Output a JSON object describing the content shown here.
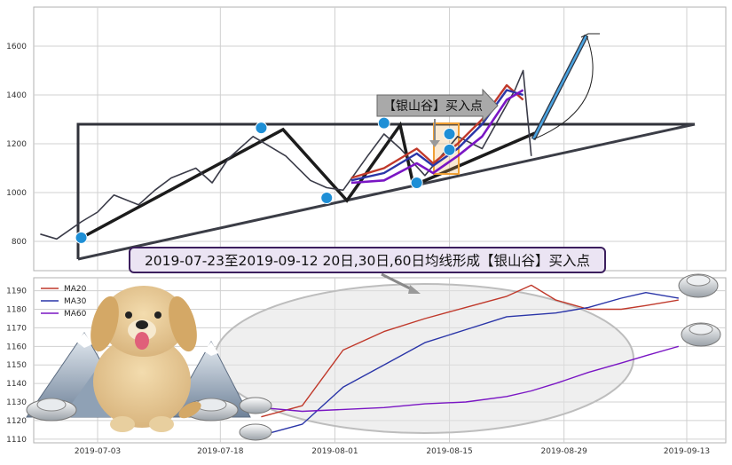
{
  "chart_data": [
    {
      "type": "line",
      "title": "",
      "xlabel": "",
      "ylabel": "",
      "ylim": [
        680,
        1760
      ],
      "y_ticks": [
        800,
        1000,
        1200,
        1400,
        1600
      ],
      "grid": true,
      "series": [
        {
          "x": [
            "2019-06-26",
            "2019-06-28",
            "2019-07-01",
            "2019-07-03",
            "2019-07-05",
            "2019-07-08",
            "2019-07-10",
            "2019-07-12",
            "2019-07-15",
            "2019-07-17",
            "2019-07-19",
            "2019-07-22",
            "2019-07-24",
            "2019-07-26",
            "2019-07-29",
            "2019-07-31",
            "2019-08-02",
            "2019-08-05",
            "2019-08-07",
            "2019-08-09",
            "2019-08-12",
            "2019-08-14",
            "2019-08-16",
            "2019-08-19",
            "2019-08-21",
            "2019-08-23",
            "2019-08-24",
            "2019-08-25"
          ],
          "values": [
            830,
            810,
            880,
            920,
            990,
            950,
            1010,
            1060,
            1100,
            1040,
            1140,
            1230,
            1190,
            1150,
            1050,
            1020,
            1010,
            1150,
            1240,
            1180,
            1070,
            1150,
            1230,
            1180,
            1300,
            1420,
            1500,
            1150
          ]
        },
        {
          "name": "MA20",
          "x": [
            "2019-08-03",
            "2019-08-07",
            "2019-08-11",
            "2019-08-13",
            "2019-08-16",
            "2019-08-19",
            "2019-08-22",
            "2019-08-24"
          ],
          "values": [
            1060,
            1100,
            1180,
            1120,
            1200,
            1300,
            1440,
            1380
          ]
        },
        {
          "name": "MA30",
          "x": [
            "2019-08-03",
            "2019-08-07",
            "2019-08-11",
            "2019-08-13",
            "2019-08-16",
            "2019-08-19",
            "2019-08-22",
            "2019-08-24"
          ],
          "values": [
            1050,
            1080,
            1160,
            1110,
            1180,
            1280,
            1420,
            1400
          ]
        },
        {
          "name": "MA60",
          "x": [
            "2019-08-03",
            "2019-08-07",
            "2019-08-11",
            "2019-08-13",
            "2019-08-16",
            "2019-08-19",
            "2019-08-22",
            "2019-08-24"
          ],
          "values": [
            1040,
            1050,
            1120,
            1080,
            1150,
            1230,
            1380,
            1420
          ]
        }
      ],
      "markers": [
        {
          "x": "2019-07-01",
          "value": 815
        },
        {
          "x": "2019-07-23",
          "value": 1265
        },
        {
          "x": "2019-07-31",
          "value": 978
        },
        {
          "x": "2019-08-07",
          "value": 1285
        },
        {
          "x": "2019-08-11",
          "value": 1040
        },
        {
          "x": "2019-08-15",
          "value": 1240
        },
        {
          "x": "2019-08-15",
          "value": 1175
        }
      ],
      "annotations": {
        "buy_point": "【银山谷】买入点",
        "caption": "2019-07-23至2019-09-12 20日,30日,60日均线形成【银山谷】买入点"
      }
    },
    {
      "type": "line",
      "title": "",
      "xlabel": "",
      "ylabel": "",
      "ylim": [
        1108,
        1197
      ],
      "y_ticks": [
        1110,
        1120,
        1130,
        1140,
        1150,
        1160,
        1170,
        1180,
        1190
      ],
      "x_ticks": [
        "2019-07-03",
        "2019-07-18",
        "2019-08-01",
        "2019-08-15",
        "2019-08-29",
        "2019-09-13"
      ],
      "legend": "top-left",
      "grid": true,
      "series": [
        {
          "name": "MA20",
          "color": "#c0392b",
          "x": [
            "2019-07-23",
            "2019-07-28",
            "2019-08-02",
            "2019-08-07",
            "2019-08-12",
            "2019-08-17",
            "2019-08-22",
            "2019-08-25",
            "2019-08-28",
            "2019-09-01",
            "2019-09-05",
            "2019-09-08",
            "2019-09-12"
          ],
          "values": [
            1122,
            1128,
            1158,
            1168,
            1175,
            1181,
            1187,
            1193,
            1185,
            1180,
            1180,
            1182,
            1185
          ]
        },
        {
          "name": "MA30",
          "color": "#2a35a8",
          "x": [
            "2019-07-23",
            "2019-07-28",
            "2019-08-02",
            "2019-08-07",
            "2019-08-12",
            "2019-08-17",
            "2019-08-22",
            "2019-08-25",
            "2019-08-28",
            "2019-09-01",
            "2019-09-05",
            "2019-09-08",
            "2019-09-12"
          ],
          "values": [
            1112,
            1118,
            1138,
            1150,
            1162,
            1169,
            1176,
            1177,
            1178,
            1181,
            1186,
            1189,
            1186
          ]
        },
        {
          "name": "MA60",
          "color": "#7a16c4",
          "x": [
            "2019-07-23",
            "2019-07-28",
            "2019-08-02",
            "2019-08-07",
            "2019-08-12",
            "2019-08-17",
            "2019-08-22",
            "2019-08-25",
            "2019-08-28",
            "2019-09-01",
            "2019-09-05",
            "2019-09-08",
            "2019-09-12"
          ],
          "values": [
            1127,
            1125,
            1126,
            1127,
            1129,
            1130,
            1133,
            1136,
            1140,
            1146,
            1151,
            1155,
            1160
          ]
        }
      ]
    }
  ]
}
